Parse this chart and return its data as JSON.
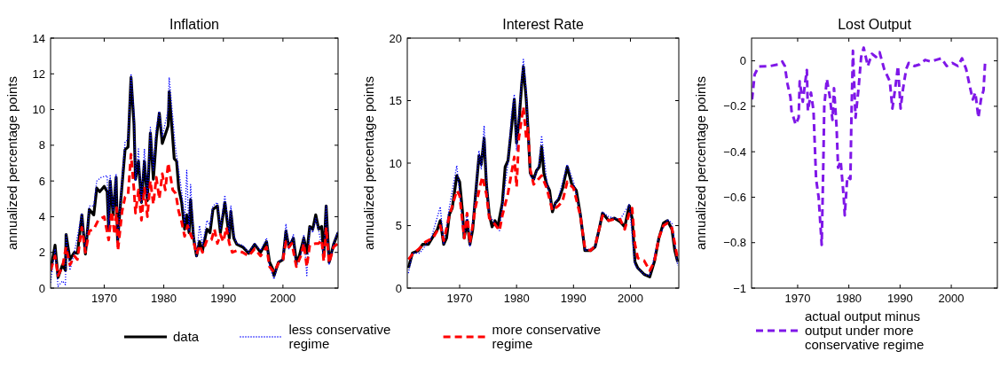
{
  "chart_data": [
    {
      "type": "line",
      "title": "Inflation",
      "ylabel": "annualized percentage points",
      "xlim": [
        1961,
        2009.25
      ],
      "xticks": [
        1970,
        1980,
        1990,
        2000
      ],
      "ylim": [
        0,
        14
      ],
      "yticks": [
        0,
        2,
        4,
        6,
        8,
        10,
        12,
        14
      ],
      "grid": false,
      "legend": "bottom",
      "series": [
        {
          "name": "data",
          "color": "#000000",
          "line_style": "solid",
          "x": [
            1961,
            1961.75,
            1962.25,
            1963,
            1963.5,
            1963.6,
            1964.25,
            1965,
            1965.5,
            1966.25,
            1966.85,
            1967.5,
            1968.25,
            1968.75,
            1969.25,
            1970,
            1970.5,
            1970.75,
            1971,
            1971.5,
            1972,
            1972.25,
            1972.75,
            1973.5,
            1974,
            1974.5,
            1975,
            1975.25,
            1975.75,
            1976.25,
            1976.75,
            1977.25,
            1977.75,
            1978.25,
            1978.75,
            1979.25,
            1979.75,
            1980.75,
            1980.9,
            1981.5,
            1981.75,
            1982.15,
            1982.5,
            1983,
            1983.5,
            1983.85,
            1984.25,
            1984.5,
            1985,
            1985.5,
            1986,
            1986.5,
            1987.25,
            1987.75,
            1988.25,
            1989,
            1989.5,
            1990.25,
            1991,
            1991.25,
            1991.75,
            1992.25,
            1993.25,
            1994.25,
            1995.25,
            1996.25,
            1997.25,
            1997.75,
            1998.25,
            1998.5,
            1999.25,
            2000,
            2000.5,
            2001,
            2001.75,
            2002.25,
            2002.75,
            2003.5,
            2004,
            2004.5,
            2005,
            2005.5,
            2006,
            2006.5,
            2006.85,
            2007.25,
            2007.75,
            2008.5,
            2009.25
          ],
          "values": [
            0.96,
            2.4,
            0.6,
            1.3,
            1.0,
            3.0,
            1.6,
            2.0,
            1.95,
            4.1,
            1.9,
            4.4,
            4.1,
            5.6,
            5.4,
            5.7,
            5.4,
            3.3,
            6.0,
            4.1,
            6.2,
            2.6,
            4.8,
            7.75,
            7.9,
            11.8,
            9.2,
            6.1,
            7.1,
            4.8,
            7.1,
            4.9,
            8.7,
            6.1,
            8.4,
            9.8,
            8.1,
            9.1,
            11.0,
            8.4,
            7.25,
            7.1,
            5.6,
            4.8,
            3.3,
            4.1,
            3.1,
            4.95,
            2.8,
            1.8,
            2.6,
            2.1,
            3.3,
            3.1,
            4.4,
            4.6,
            3.1,
            4.8,
            2.8,
            4.3,
            2.8,
            2.45,
            2.3,
            1.95,
            2.45,
            2.0,
            2.6,
            1.45,
            1.1,
            0.7,
            1.45,
            1.6,
            3.2,
            2.3,
            2.8,
            1.45,
            1.8,
            2.8,
            1.95,
            3.45,
            3.3,
            4.1,
            3.3,
            3.45,
            1.8,
            4.6,
            1.45,
            2.45,
            3.1
          ]
        },
        {
          "name": "less conservative regime",
          "color": "#0000ff",
          "line_style": "dotted",
          "x": [
            1961,
            1961.75,
            1962.25,
            1963,
            1963.5,
            1963.6,
            1964.25,
            1965,
            1966.25,
            1966.85,
            1967.5,
            1968.25,
            1968.75,
            1969.5,
            1970.5,
            1970.75,
            1971,
            1971.5,
            1972,
            1972.25,
            1972.75,
            1973.5,
            1974,
            1974.5,
            1975,
            1975.25,
            1975.75,
            1976.25,
            1976.75,
            1977.25,
            1977.75,
            1978.25,
            1978.75,
            1979.25,
            1979.75,
            1980.75,
            1980.9,
            1981.5,
            1981.9,
            1982.5,
            1983,
            1983.5,
            1983.85,
            1984.25,
            1984.5,
            1985,
            1985.5,
            1986,
            1986.5,
            1987.25,
            1987.75,
            1988.25,
            1989,
            1989.5,
            1990.25,
            1991,
            1991.25,
            1991.75,
            1992.25,
            1993.25,
            1994.25,
            1995.25,
            1996.25,
            1997.25,
            1997.75,
            1998.5,
            1999.25,
            2000,
            2000.5,
            2001,
            2001.75,
            2002.25,
            2003,
            2003.5,
            2004,
            2004.5,
            2005,
            2005.5,
            2006,
            2006.85,
            2007.25,
            2007.75,
            2008.5,
            2009.25
          ],
          "values": [
            0.3,
            2.2,
            0.1,
            0.4,
            0.2,
            3.0,
            1.0,
            2.0,
            4.2,
            2.0,
            4.6,
            4.6,
            6.0,
            6.2,
            6.3,
            3.2,
            6.3,
            4.3,
            6.4,
            2.5,
            5.0,
            8.2,
            8.3,
            12.0,
            9.8,
            6.0,
            7.8,
            4.8,
            7.8,
            5.0,
            9.0,
            6.6,
            9.0,
            9.9,
            8.5,
            10.0,
            11.8,
            9.6,
            8.0,
            6.6,
            5.4,
            3.6,
            6.6,
            3.2,
            5.8,
            3.0,
            1.8,
            3.5,
            2.4,
            3.8,
            3.5,
            4.6,
            4.8,
            3.3,
            5.2,
            3.1,
            4.6,
            3.0,
            2.5,
            2.4,
            2.0,
            2.5,
            2.1,
            2.8,
            1.2,
            0.5,
            1.5,
            1.6,
            3.6,
            2.2,
            3.0,
            1.2,
            1.8,
            3.0,
            0.7,
            3.4,
            3.1,
            3.9,
            3.2,
            1.8,
            4.6,
            1.3,
            2.5,
            3.2
          ]
        },
        {
          "name": "more conservative regime",
          "color": "#ff0000",
          "line_style": "dashed",
          "x": [
            1961,
            1961.75,
            1962.25,
            1963,
            1963.6,
            1964.25,
            1965,
            1965.5,
            1966.25,
            1966.85,
            1967.5,
            1968.25,
            1969,
            1970,
            1970.75,
            1971.25,
            1971.75,
            1972.1,
            1972.3,
            1973,
            1973.5,
            1974,
            1974.5,
            1975,
            1975.25,
            1975.75,
            1976.25,
            1976.75,
            1977.25,
            1977.75,
            1978.25,
            1978.75,
            1979.25,
            1979.75,
            1980.25,
            1980.75,
            1981.5,
            1982,
            1982.5,
            1983,
            1983.5,
            1984,
            1984.5,
            1985,
            1985.5,
            1986,
            1986.5,
            1987.25,
            1988,
            1988.5,
            1989,
            1989.5,
            1990,
            1990.5,
            1991,
            1991.5,
            1992.25,
            1993.25,
            1994.25,
            1995.25,
            1996.25,
            1997.25,
            1997.75,
            1998.5,
            1999.25,
            2000,
            2000.5,
            2001,
            2001.5,
            2002.25,
            2003,
            2003.5,
            2004,
            2004.5,
            2005.5,
            2006,
            2006.5,
            2006.85,
            2007.25,
            2007.75,
            2008.5,
            2009.25
          ],
          "values": [
            1.0,
            1.8,
            0.7,
            1.2,
            2.3,
            1.3,
            1.8,
            1.6,
            3.4,
            2.0,
            3.2,
            3.3,
            3.8,
            4.0,
            2.7,
            4.3,
            3.0,
            4.5,
            2.1,
            4.3,
            5.1,
            5.2,
            7.5,
            5.5,
            4.2,
            5.5,
            3.8,
            5.6,
            4.0,
            6.0,
            4.7,
            6.2,
            5.0,
            6.4,
            5.5,
            7.0,
            5.5,
            5.3,
            4.3,
            3.7,
            2.9,
            3.5,
            3.0,
            2.6,
            1.9,
            2.4,
            2.0,
            2.7,
            2.7,
            3.3,
            2.5,
            3.0,
            2.6,
            3.4,
            2.5,
            2.0,
            2.1,
            2.0,
            1.8,
            2.2,
            1.8,
            2.3,
            1.2,
            0.9,
            1.4,
            1.6,
            2.6,
            2.3,
            2.5,
            1.2,
            1.8,
            2.5,
            1.2,
            2.4,
            2.5,
            2.5,
            2.7,
            1.5,
            3.4,
            1.4,
            2.3,
            2.5
          ]
        }
      ]
    },
    {
      "type": "line",
      "title": "Interest Rate",
      "ylabel": "annualized percentage points",
      "xlim": [
        1960.8,
        2008.5
      ],
      "xticks": [
        1970,
        1980,
        1990,
        2000
      ],
      "ylim": [
        0,
        20
      ],
      "yticks": [
        0,
        5,
        10,
        15,
        20
      ],
      "grid": false,
      "series": [
        {
          "color": "#000000",
          "line_style": "solid",
          "x": [
            1961,
            1961.7,
            1962.75,
            1963.5,
            1964.5,
            1965.3,
            1966.1,
            1966.6,
            1967.2,
            1967.7,
            1968.2,
            1968.7,
            1969.5,
            1970,
            1970.5,
            1970.8,
            1971.3,
            1971.8,
            1972.3,
            1972.8,
            1973.4,
            1973.8,
            1974.3,
            1974.7,
            1975.2,
            1975.7,
            1976.2,
            1976.7,
            1977.5,
            1978,
            1978.5,
            1979.1,
            1979.6,
            1980,
            1980.4,
            1980.9,
            1981.2,
            1981.7,
            1982,
            1982.4,
            1983,
            1983.5,
            1984,
            1984.4,
            1984.8,
            1985.3,
            1985.8,
            1986.3,
            1986.8,
            1987.4,
            1988.1,
            1988.9,
            1989.7,
            1990.5,
            1991.2,
            1992,
            1993,
            1993.8,
            1994.6,
            1995.1,
            1996.2,
            1997.2,
            1998.2,
            1999,
            1999.8,
            2000.3,
            2000.8,
            2001.3,
            2002.4,
            2003.4,
            2004.2,
            2005,
            2005.8,
            2006.5,
            2007.3,
            2007.8,
            2008.3
          ],
          "values": [
            1.6,
            2.8,
            3.0,
            3.5,
            3.5,
            4.1,
            4.7,
            5.4,
            3.5,
            4.0,
            5.9,
            6.4,
            9.0,
            8.5,
            6.1,
            4.0,
            5.4,
            3.5,
            4.7,
            7.5,
            10.6,
            9.9,
            12.0,
            8.3,
            5.9,
            4.9,
            5.4,
            4.9,
            6.8,
            9.7,
            10.2,
            12.8,
            15.1,
            11.6,
            13.2,
            16.3,
            17.7,
            15.1,
            12.8,
            9.2,
            8.7,
            9.4,
            9.7,
            11.3,
            9.2,
            8.3,
            7.8,
            6.1,
            6.8,
            7.1,
            8.0,
            9.7,
            8.3,
            7.8,
            5.9,
            3.0,
            3.0,
            3.3,
            4.9,
            6.0,
            5.4,
            5.6,
            5.3,
            4.9,
            6.6,
            5.6,
            2.1,
            1.6,
            1.1,
            0.9,
            2.1,
            4.0,
            5.2,
            5.4,
            4.7,
            3.0,
            2.1
          ]
        },
        {
          "color": "#0000ff",
          "line_style": "dotted",
          "x": [
            1961,
            1961.7,
            1963,
            1965,
            1966.6,
            1967.2,
            1968.2,
            1969.5,
            1970.8,
            1971.3,
            1971.8,
            1972.8,
            1973.4,
            1973.8,
            1974.3,
            1974.7,
            1975.2,
            1976.2,
            1977,
            1977.5,
            1978.5,
            1979.1,
            1979.6,
            1980,
            1980.4,
            1981.2,
            1981.7,
            1982,
            1982.4,
            1983,
            1984,
            1984.4,
            1985.3,
            1986.3,
            1987.4,
            1988.9,
            1990,
            1991.2,
            1992,
            1993.8,
            1995.1,
            1996.2,
            1998.2,
            1999.8,
            2000.8,
            2002.4,
            2003.4,
            2005,
            2006.5,
            2007.3,
            2008.3
          ],
          "values": [
            1.2,
            2.8,
            2.8,
            4.0,
            6.5,
            3.5,
            6.5,
            9.8,
            4.0,
            6.0,
            3.3,
            7.5,
            11.0,
            9.5,
            13.0,
            8.8,
            5.8,
            5.2,
            4.6,
            6.6,
            10.0,
            13.9,
            15.5,
            11.0,
            14.0,
            18.3,
            15.8,
            12.5,
            9.0,
            8.6,
            10.0,
            12.2,
            8.6,
            6.3,
            7.3,
            9.9,
            8.5,
            6.0,
            3.0,
            3.3,
            6.1,
            5.7,
            5.5,
            6.7,
            1.8,
            1.1,
            1.0,
            4.1,
            5.5,
            5.2,
            1.8
          ]
        },
        {
          "color": "#ff0000",
          "line_style": "dashed",
          "x": [
            1961,
            1961.7,
            1963,
            1964,
            1965.3,
            1966.6,
            1967.2,
            1968.2,
            1969.5,
            1970,
            1970.8,
            1971.3,
            1971.8,
            1972.8,
            1973.6,
            1974,
            1974.7,
            1975.2,
            1976.2,
            1977,
            1977.5,
            1978.5,
            1979.6,
            1980,
            1980.4,
            1981.2,
            1981.7,
            1982,
            1982.4,
            1983,
            1984,
            1984.4,
            1985.3,
            1986.3,
            1987.4,
            1988.1,
            1988.9,
            1990,
            1991.2,
            1992,
            1993,
            1993.8,
            1995.1,
            1996.2,
            1997.2,
            1998.2,
            1999,
            1999.8,
            2000.3,
            2000.8,
            2001.3,
            2002.4,
            2003.4,
            2004.2,
            2005,
            2005.8,
            2006.5,
            2007.3,
            2008.3
          ],
          "values": [
            2.3,
            2.7,
            3.2,
            3.7,
            4.0,
            5.0,
            3.8,
            5.8,
            7.8,
            7.4,
            4.0,
            6.0,
            3.6,
            6.5,
            8.2,
            8.9,
            7.5,
            5.6,
            5.1,
            4.6,
            5.8,
            7.6,
            10.5,
            8.1,
            12.0,
            14.5,
            12.0,
            12.8,
            9.5,
            8.3,
            8.8,
            9.0,
            8.0,
            6.2,
            6.6,
            7.0,
            8.5,
            8.0,
            5.8,
            3.2,
            3.0,
            3.4,
            5.8,
            5.4,
            5.5,
            5.5,
            4.7,
            6.0,
            6.4,
            3.5,
            2.4,
            2.2,
            1.4,
            2.1,
            4.0,
            5.0,
            5.2,
            4.8,
            2.3
          ]
        }
      ]
    },
    {
      "type": "line",
      "title": "Lost Output",
      "ylabel": "annualized percentage points",
      "xlim": [
        1961,
        2009
      ],
      "xticks": [
        1970,
        1980,
        1990,
        2000
      ],
      "ylim": [
        -1,
        0.1
      ],
      "yticks": [
        {
          "value": -1,
          "label": "−1"
        },
        {
          "value": -0.8,
          "label": "−0.8"
        },
        {
          "value": -0.6,
          "label": "−0.6"
        },
        {
          "value": -0.4,
          "label": "−0.4"
        },
        {
          "value": -0.2,
          "label": "−0.2"
        },
        0
      ],
      "grid": false,
      "legend": "bottom",
      "series": [
        {
          "name": "actual output minus output under more conservative regime",
          "color": "#7f17e8",
          "line_style": "dashed",
          "x": [
            1961.1,
            1961.6,
            1962.4,
            1964.6,
            1966.2,
            1967,
            1967.5,
            1968,
            1968.6,
            1968.8,
            1969.6,
            1970.2,
            1970.4,
            1971,
            1971.5,
            1971.8,
            1972,
            1972.6,
            1973.1,
            1973.6,
            1974.1,
            1974.7,
            1975,
            1975.2,
            1975.7,
            1976.3,
            1976.8,
            1977.1,
            1977.6,
            1977.9,
            1978.4,
            1979,
            1979.2,
            1979.7,
            1980.3,
            1980.5,
            1980.8,
            1981.3,
            1981.9,
            1982.4,
            1982.9,
            1983.7,
            1984.5,
            1985.3,
            1986,
            1986.9,
            1988,
            1988.5,
            1989,
            1989.6,
            1990.1,
            1990.6,
            1991.2,
            1991.7,
            1992.8,
            1993.8,
            1994.9,
            1996,
            1997,
            1998.1,
            1999.1,
            2000.2,
            2001.3,
            2002.1,
            2002.9,
            2003.7,
            2004.2,
            2004.7,
            2005.3,
            2005.8,
            2006.3,
            2006.6
          ],
          "values": [
            -0.17,
            -0.06,
            -0.025,
            -0.023,
            -0.016,
            -0.003,
            -0.023,
            -0.1,
            -0.16,
            -0.22,
            -0.28,
            -0.25,
            -0.09,
            -0.18,
            -0.09,
            -0.04,
            -0.22,
            -0.14,
            -0.22,
            -0.52,
            -0.6,
            -0.81,
            -0.47,
            -0.2,
            -0.08,
            -0.16,
            -0.26,
            -0.12,
            -0.29,
            -0.47,
            -0.44,
            -0.6,
            -0.68,
            -0.51,
            -0.52,
            -0.25,
            0.044,
            -0.25,
            -0.12,
            0.017,
            0.058,
            -0.023,
            0.031,
            0.017,
            0.038,
            -0.036,
            -0.09,
            -0.21,
            -0.13,
            -0.023,
            -0.21,
            -0.12,
            -0.036,
            -0.009,
            -0.023,
            -0.016,
            0.004,
            -0.003,
            0.004,
            0.011,
            -0.023,
            -0.009,
            -0.023,
            0.011,
            -0.036,
            -0.12,
            -0.17,
            -0.14,
            -0.25,
            -0.17,
            -0.13,
            -0.009
          ]
        }
      ]
    }
  ]
}
